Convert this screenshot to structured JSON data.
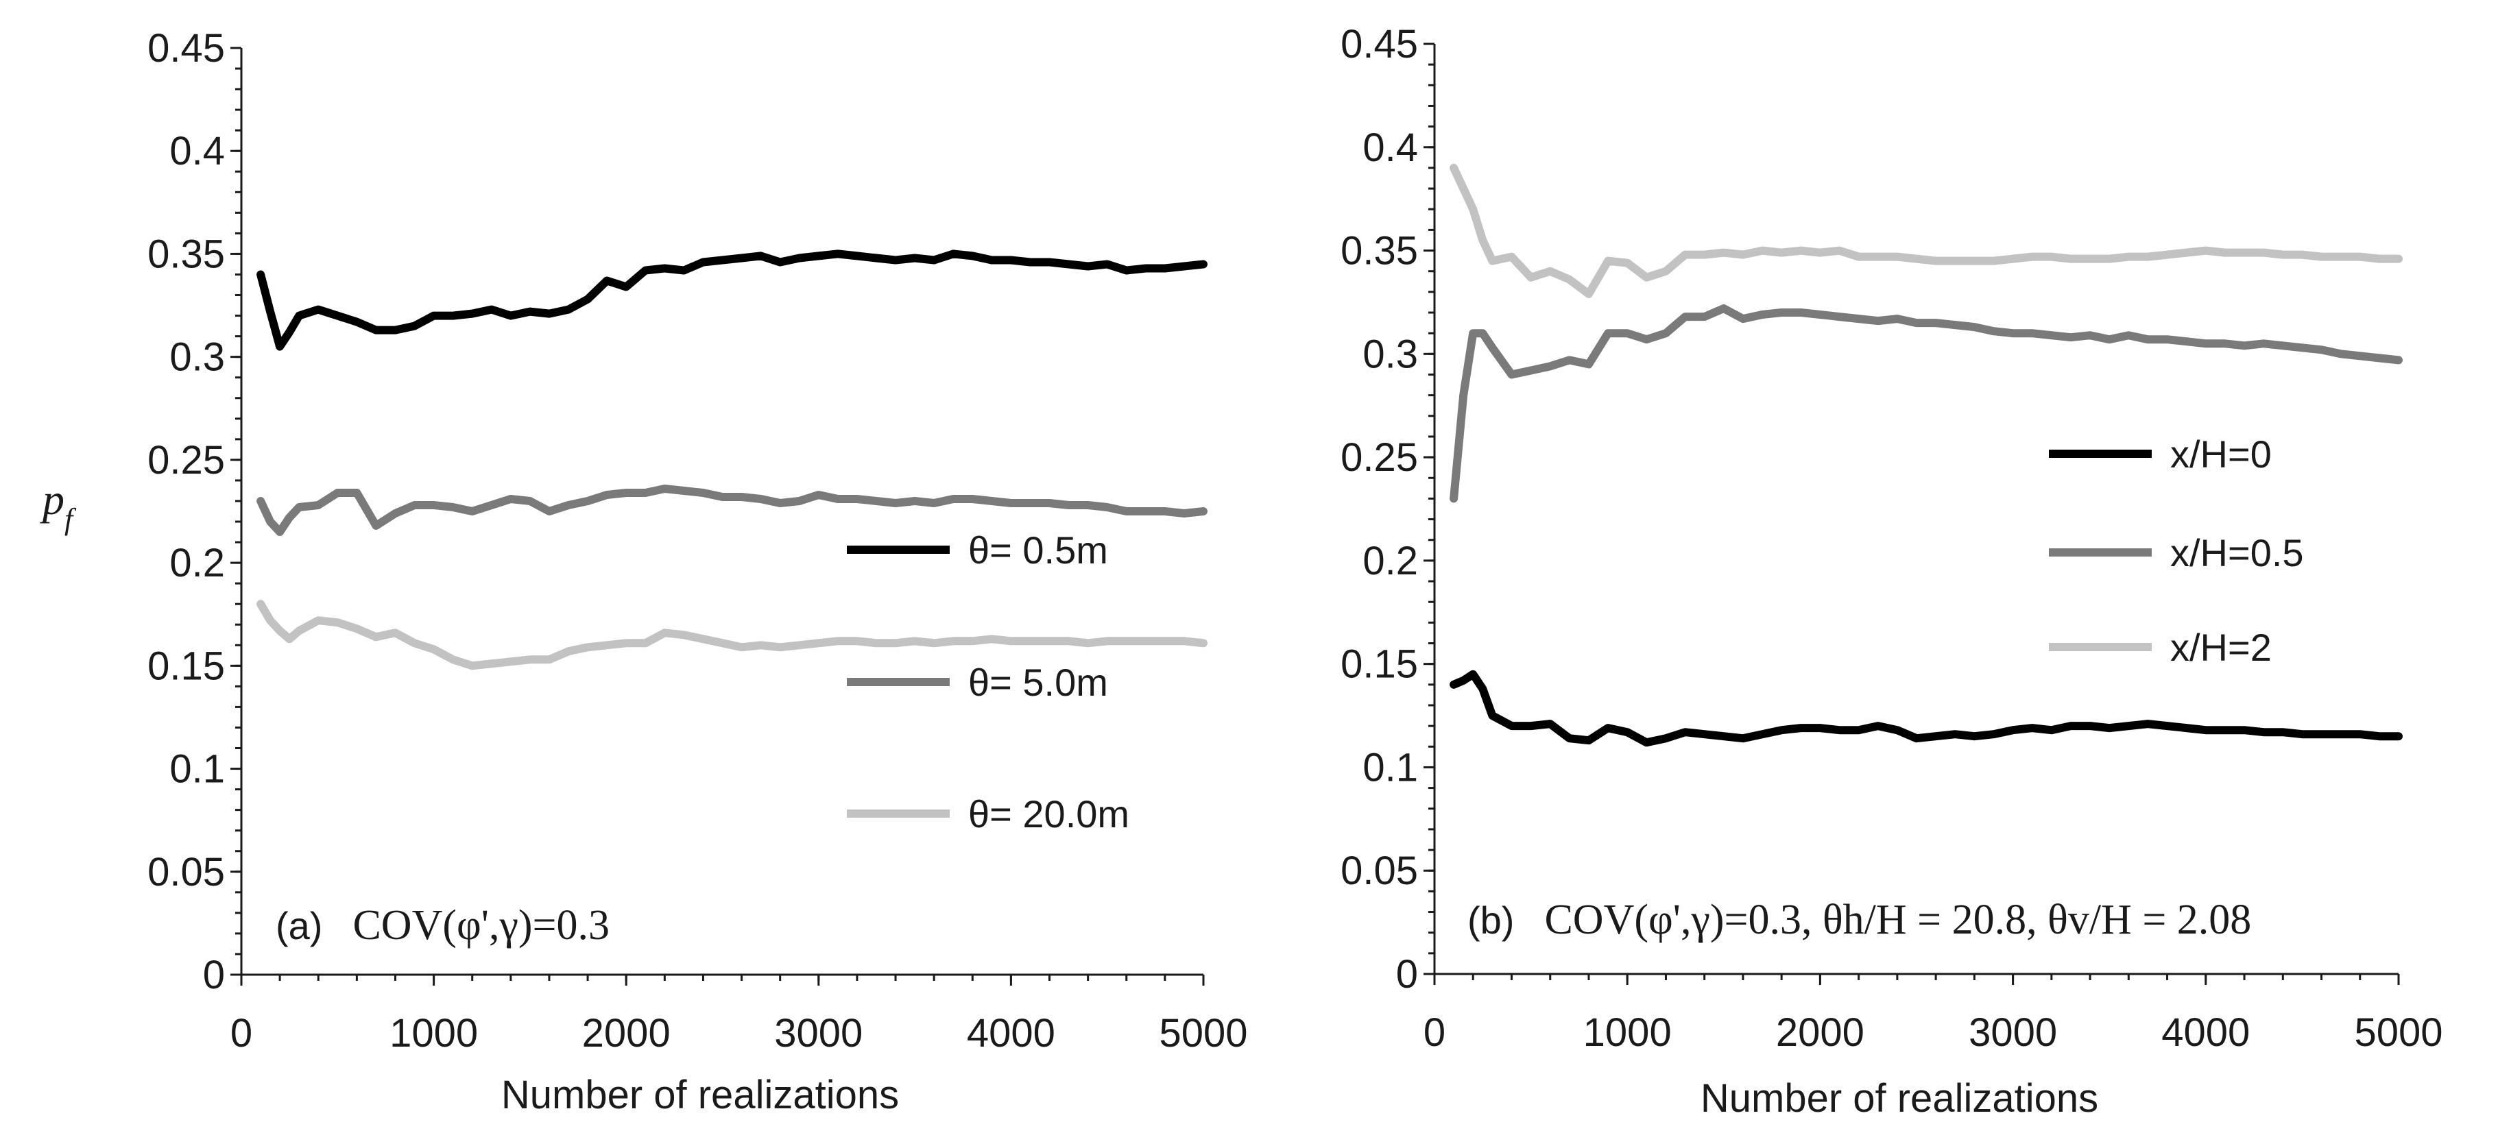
{
  "chart_data": [
    {
      "type": "line",
      "panel_label": "(a)",
      "annotation": "COV(φ',γ)=0.3",
      "xlabel": "Number of realizations",
      "ylabel": "p_f",
      "ylabel_main": "p",
      "ylabel_sub": "f",
      "xlim": [
        0,
        5000
      ],
      "ylim": [
        0,
        0.45
      ],
      "x_ticks": [
        0,
        1000,
        2000,
        3000,
        4000,
        5000
      ],
      "x_tick_labels": [
        "0",
        "1000",
        "2000",
        "3000",
        "4000",
        "5000"
      ],
      "y_ticks": [
        0,
        0.05,
        0.1,
        0.15,
        0.2,
        0.25,
        0.3,
        0.35,
        0.4,
        0.45
      ],
      "y_tick_labels": [
        "0",
        "0.05",
        "0.1",
        "0.15",
        "0.2",
        "0.25",
        "0.3",
        "0.35",
        "0.4",
        "0.45"
      ],
      "legend_position": "right-middle",
      "series": [
        {
          "name": "θ= 0.5m",
          "color": "#000000",
          "x": [
            100,
            150,
            200,
            250,
            300,
            400,
            500,
            600,
            700,
            800,
            900,
            1000,
            1100,
            1200,
            1300,
            1400,
            1500,
            1600,
            1700,
            1800,
            1900,
            2000,
            2100,
            2200,
            2300,
            2400,
            2500,
            2600,
            2700,
            2800,
            2900,
            3000,
            3100,
            3200,
            3300,
            3400,
            3500,
            3600,
            3700,
            3800,
            3900,
            4000,
            4100,
            4200,
            4300,
            4400,
            4500,
            4600,
            4700,
            4800,
            4900,
            5000
          ],
          "y": [
            0.34,
            0.322,
            0.305,
            0.312,
            0.32,
            0.323,
            0.32,
            0.317,
            0.313,
            0.313,
            0.315,
            0.32,
            0.32,
            0.321,
            0.323,
            0.32,
            0.322,
            0.321,
            0.323,
            0.328,
            0.337,
            0.334,
            0.342,
            0.343,
            0.342,
            0.346,
            0.347,
            0.348,
            0.349,
            0.346,
            0.348,
            0.349,
            0.35,
            0.349,
            0.348,
            0.347,
            0.348,
            0.347,
            0.35,
            0.349,
            0.347,
            0.347,
            0.346,
            0.346,
            0.345,
            0.344,
            0.345,
            0.342,
            0.343,
            0.343,
            0.344,
            0.345
          ]
        },
        {
          "name": "θ= 5.0m",
          "color": "#7a7a7a",
          "x": [
            100,
            150,
            200,
            250,
            300,
            400,
            500,
            600,
            700,
            800,
            900,
            1000,
            1100,
            1200,
            1300,
            1400,
            1500,
            1600,
            1700,
            1800,
            1900,
            2000,
            2100,
            2200,
            2300,
            2400,
            2500,
            2600,
            2700,
            2800,
            2900,
            3000,
            3100,
            3200,
            3300,
            3400,
            3500,
            3600,
            3700,
            3800,
            3900,
            4000,
            4100,
            4200,
            4300,
            4400,
            4500,
            4600,
            4700,
            4800,
            4900,
            5000
          ],
          "y": [
            0.23,
            0.22,
            0.215,
            0.222,
            0.227,
            0.228,
            0.234,
            0.234,
            0.218,
            0.224,
            0.228,
            0.228,
            0.227,
            0.225,
            0.228,
            0.231,
            0.23,
            0.225,
            0.228,
            0.23,
            0.233,
            0.234,
            0.234,
            0.236,
            0.235,
            0.234,
            0.232,
            0.232,
            0.231,
            0.229,
            0.23,
            0.233,
            0.231,
            0.231,
            0.23,
            0.229,
            0.23,
            0.229,
            0.231,
            0.231,
            0.23,
            0.229,
            0.229,
            0.229,
            0.228,
            0.228,
            0.227,
            0.225,
            0.225,
            0.225,
            0.224,
            0.225
          ]
        },
        {
          "name": "θ= 20.0m",
          "color": "#c2c2c2",
          "x": [
            100,
            150,
            200,
            250,
            300,
            400,
            500,
            600,
            700,
            800,
            900,
            1000,
            1100,
            1200,
            1300,
            1400,
            1500,
            1600,
            1700,
            1800,
            1900,
            2000,
            2100,
            2200,
            2300,
            2400,
            2500,
            2600,
            2700,
            2800,
            2900,
            3000,
            3100,
            3200,
            3300,
            3400,
            3500,
            3600,
            3700,
            3800,
            3900,
            4000,
            4100,
            4200,
            4300,
            4400,
            4500,
            4600,
            4700,
            4800,
            4900,
            5000
          ],
          "y": [
            0.18,
            0.172,
            0.167,
            0.163,
            0.167,
            0.172,
            0.171,
            0.168,
            0.164,
            0.166,
            0.161,
            0.158,
            0.153,
            0.15,
            0.151,
            0.152,
            0.153,
            0.153,
            0.157,
            0.159,
            0.16,
            0.161,
            0.161,
            0.166,
            0.165,
            0.163,
            0.161,
            0.159,
            0.16,
            0.159,
            0.16,
            0.161,
            0.162,
            0.162,
            0.161,
            0.161,
            0.162,
            0.161,
            0.162,
            0.162,
            0.163,
            0.162,
            0.162,
            0.162,
            0.162,
            0.161,
            0.162,
            0.162,
            0.162,
            0.162,
            0.162,
            0.161
          ]
        }
      ]
    },
    {
      "type": "line",
      "panel_label": "(b)",
      "annotation": "COV(φ',γ)=0.3,  θh/H = 20.8,  θv/H = 2.08",
      "xlabel": "Number of realizations",
      "ylabel": "",
      "xlim": [
        0,
        5000
      ],
      "ylim": [
        0,
        0.45
      ],
      "x_ticks": [
        0,
        1000,
        2000,
        3000,
        4000,
        5000
      ],
      "x_tick_labels": [
        "0",
        "1000",
        "2000",
        "3000",
        "4000",
        "5000"
      ],
      "y_ticks": [
        0,
        0.05,
        0.1,
        0.15,
        0.2,
        0.25,
        0.3,
        0.35,
        0.4,
        0.45
      ],
      "y_tick_labels": [
        "0",
        "0.05",
        "0.1",
        "0.15",
        "0.2",
        "0.25",
        "0.3",
        "0.35",
        "0.4",
        "0.45"
      ],
      "legend_position": "right-middle",
      "series": [
        {
          "name": "x/H=0",
          "color": "#000000",
          "x": [
            100,
            150,
            200,
            250,
            300,
            400,
            500,
            600,
            700,
            800,
            900,
            1000,
            1100,
            1200,
            1300,
            1400,
            1500,
            1600,
            1700,
            1800,
            1900,
            2000,
            2100,
            2200,
            2300,
            2400,
            2500,
            2600,
            2700,
            2800,
            2900,
            3000,
            3100,
            3200,
            3300,
            3400,
            3500,
            3600,
            3700,
            3800,
            3900,
            4000,
            4100,
            4200,
            4300,
            4400,
            4500,
            4600,
            4700,
            4800,
            4900,
            5000
          ],
          "y": [
            0.14,
            0.142,
            0.145,
            0.138,
            0.125,
            0.12,
            0.12,
            0.121,
            0.114,
            0.113,
            0.119,
            0.117,
            0.112,
            0.114,
            0.117,
            0.116,
            0.115,
            0.114,
            0.116,
            0.118,
            0.119,
            0.119,
            0.118,
            0.118,
            0.12,
            0.118,
            0.114,
            0.115,
            0.116,
            0.115,
            0.116,
            0.118,
            0.119,
            0.118,
            0.12,
            0.12,
            0.119,
            0.12,
            0.121,
            0.12,
            0.119,
            0.118,
            0.118,
            0.118,
            0.117,
            0.117,
            0.116,
            0.116,
            0.116,
            0.116,
            0.115,
            0.115
          ]
        },
        {
          "name": "x/H=0.5",
          "color": "#7a7a7a",
          "x": [
            100,
            150,
            200,
            250,
            300,
            400,
            500,
            600,
            700,
            800,
            900,
            1000,
            1100,
            1200,
            1300,
            1400,
            1500,
            1600,
            1700,
            1800,
            1900,
            2000,
            2100,
            2200,
            2300,
            2400,
            2500,
            2600,
            2700,
            2800,
            2900,
            3000,
            3100,
            3200,
            3300,
            3400,
            3500,
            3600,
            3700,
            3800,
            3900,
            4000,
            4100,
            4200,
            4300,
            4400,
            4500,
            4600,
            4700,
            4800,
            4900,
            5000
          ],
          "y": [
            0.23,
            0.28,
            0.31,
            0.31,
            0.303,
            0.29,
            0.292,
            0.294,
            0.297,
            0.295,
            0.31,
            0.31,
            0.307,
            0.31,
            0.318,
            0.318,
            0.322,
            0.317,
            0.319,
            0.32,
            0.32,
            0.319,
            0.318,
            0.317,
            0.316,
            0.317,
            0.315,
            0.315,
            0.314,
            0.313,
            0.311,
            0.31,
            0.31,
            0.309,
            0.308,
            0.309,
            0.307,
            0.309,
            0.307,
            0.307,
            0.306,
            0.305,
            0.305,
            0.304,
            0.305,
            0.304,
            0.303,
            0.302,
            0.3,
            0.299,
            0.298,
            0.297
          ]
        },
        {
          "name": "x/H=2",
          "color": "#c2c2c2",
          "x": [
            100,
            150,
            200,
            250,
            300,
            400,
            500,
            600,
            700,
            800,
            900,
            1000,
            1100,
            1200,
            1300,
            1400,
            1500,
            1600,
            1700,
            1800,
            1900,
            2000,
            2100,
            2200,
            2300,
            2400,
            2500,
            2600,
            2700,
            2800,
            2900,
            3000,
            3100,
            3200,
            3300,
            3400,
            3500,
            3600,
            3700,
            3800,
            3900,
            4000,
            4100,
            4200,
            4300,
            4400,
            4500,
            4600,
            4700,
            4800,
            4900,
            5000
          ],
          "y": [
            0.39,
            0.38,
            0.37,
            0.355,
            0.345,
            0.347,
            0.337,
            0.34,
            0.336,
            0.329,
            0.345,
            0.344,
            0.337,
            0.34,
            0.348,
            0.348,
            0.349,
            0.348,
            0.35,
            0.349,
            0.35,
            0.349,
            0.35,
            0.347,
            0.347,
            0.347,
            0.346,
            0.345,
            0.345,
            0.345,
            0.345,
            0.346,
            0.347,
            0.347,
            0.346,
            0.346,
            0.346,
            0.347,
            0.347,
            0.348,
            0.349,
            0.35,
            0.349,
            0.349,
            0.349,
            0.348,
            0.348,
            0.347,
            0.347,
            0.347,
            0.346,
            0.346
          ]
        }
      ]
    }
  ]
}
